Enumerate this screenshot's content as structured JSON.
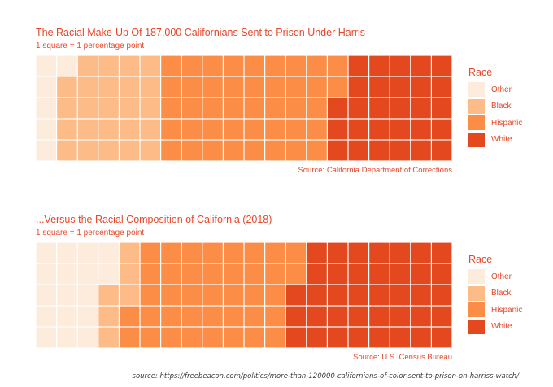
{
  "chart_data": [
    {
      "type": "waffle",
      "title": "The Racial Make-Up Of 187,000 Californians Sent to Prison Under Harris",
      "subtitle": "1 square = 1 percentage point",
      "caption": "Source: California Department of Corrections",
      "legend_title": "Race",
      "legend_position": "right",
      "grid": {
        "rows": 5,
        "columns": 20
      },
      "categories": [
        "Other",
        "Black",
        "Hispanic",
        "White"
      ],
      "values": [
        6,
        24,
        42,
        28
      ],
      "colors": [
        "#fdebdc",
        "#fdbb87",
        "#fc8d47",
        "#e3481e"
      ]
    },
    {
      "type": "waffle",
      "title": "...Versus the Racial Composition of California (2018)",
      "subtitle": "1 square = 1 percentage point",
      "caption": "Source: U.S. Census Bureau",
      "legend_title": "Race",
      "legend_position": "right",
      "grid": {
        "rows": 5,
        "columns": 20
      },
      "categories": [
        "Other",
        "Black",
        "Hispanic",
        "White"
      ],
      "values": [
        17,
        6,
        39,
        38
      ],
      "colors": [
        "#fdebdc",
        "#fdbb87",
        "#fc8d47",
        "#e3481e"
      ]
    }
  ],
  "footer": {
    "source": "source: https://freebeacon.com/politics/more-than-120000-californians-of-color-sent-to-prison-on-harriss-watch/"
  }
}
